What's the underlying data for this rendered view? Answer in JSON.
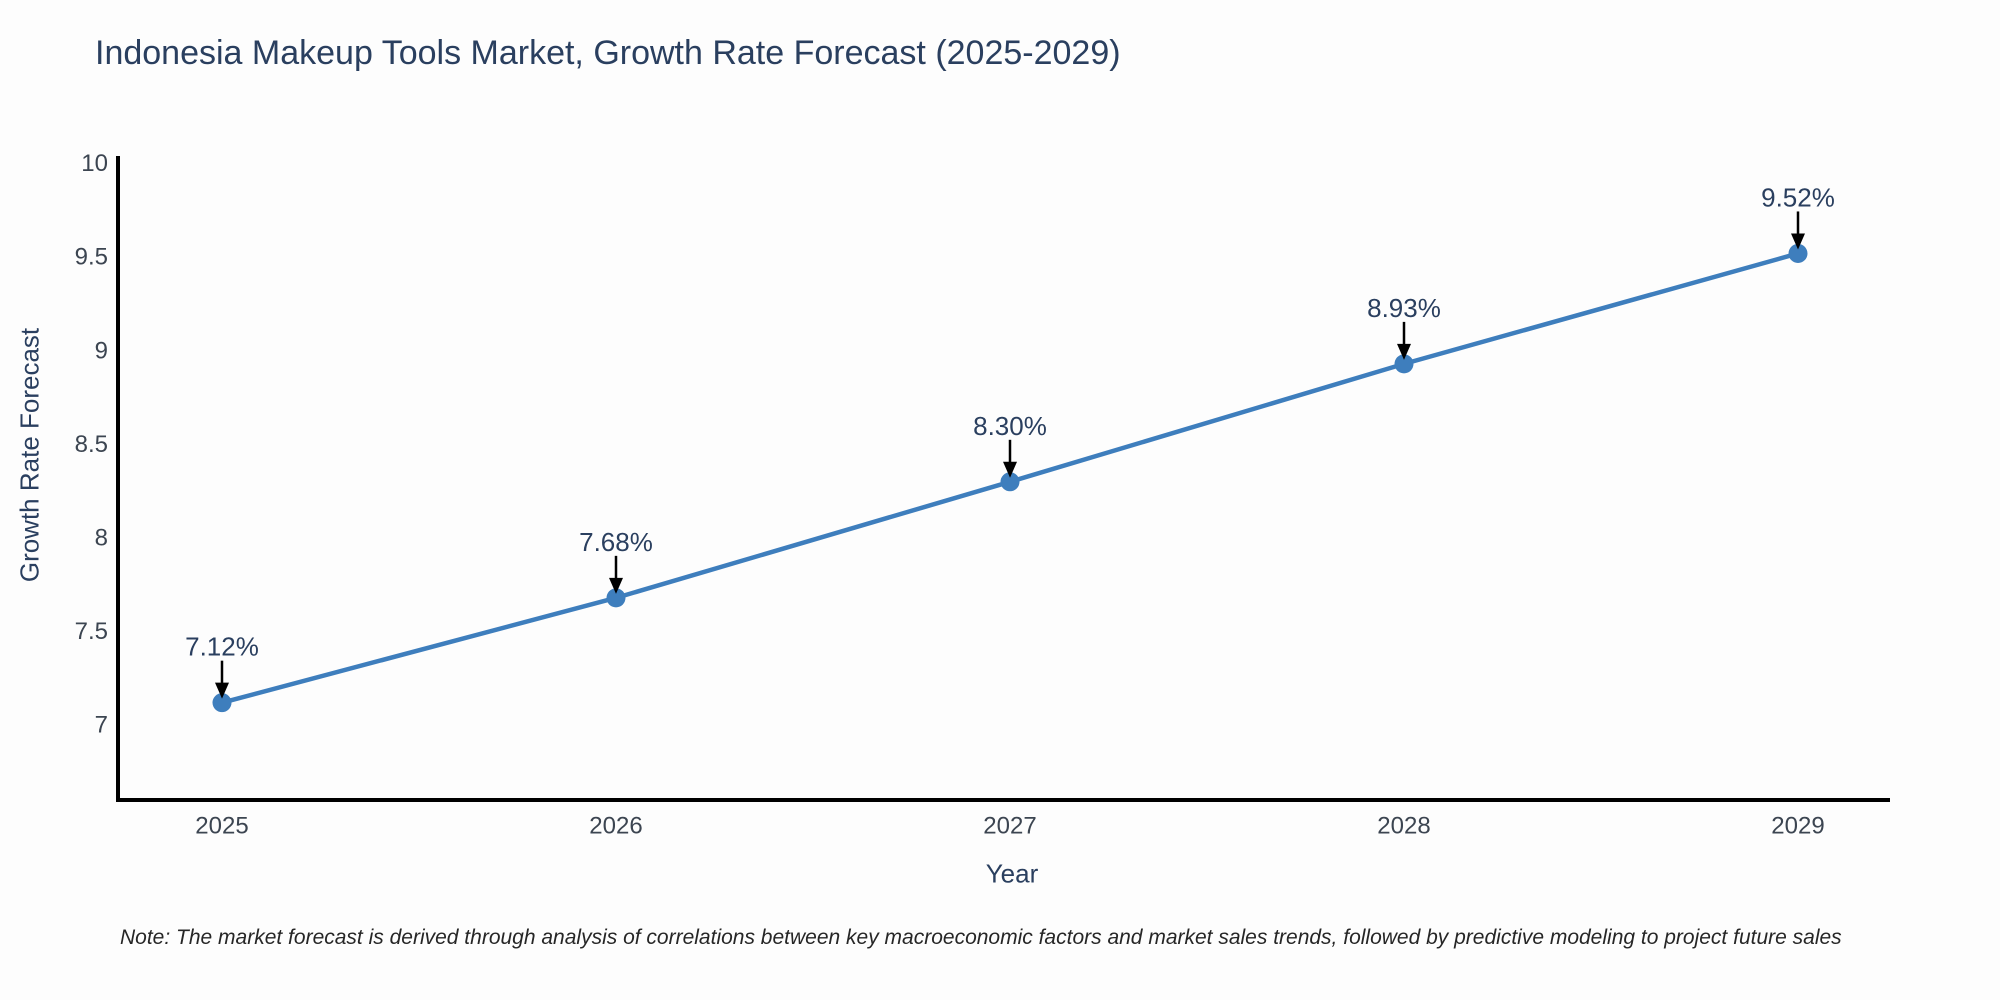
{
  "title": "Indonesia Makeup Tools Market, Growth Rate Forecast (2025-2029)",
  "note": "Note: The market forecast is derived through analysis of correlations between key macroeconomic factors and market sales trends, followed by predictive modeling to project future sales",
  "chart_data": {
    "type": "line",
    "title": "Indonesia Makeup Tools Market, Growth Rate Forecast (2025-2029)",
    "xlabel": "Year",
    "ylabel": "Growth Rate Forecast",
    "categories": [
      "2025",
      "2026",
      "2027",
      "2028",
      "2029"
    ],
    "series": [
      {
        "name": "Growth Rate Forecast",
        "values": [
          7.12,
          7.68,
          8.3,
          8.93,
          9.52
        ]
      }
    ],
    "point_labels": [
      "7.12%",
      "7.68%",
      "8.30%",
      "8.93%",
      "9.52%"
    ],
    "yticks": [
      7,
      7.5,
      8,
      8.5,
      9,
      9.5,
      10
    ],
    "ytick_labels": [
      "7",
      "7.5",
      "8",
      "8.5",
      "9",
      "9.5",
      "10"
    ],
    "ylim": [
      6.6,
      10.03
    ],
    "grid": false,
    "legend": false,
    "colors": {
      "line": "#3E7EBD",
      "marker": "#3E7EBD",
      "axis": "#000000",
      "arrow": "#000000",
      "title_text": "#2a3f5f",
      "tick_text": "#3c4551",
      "note_text": "#262626"
    }
  }
}
